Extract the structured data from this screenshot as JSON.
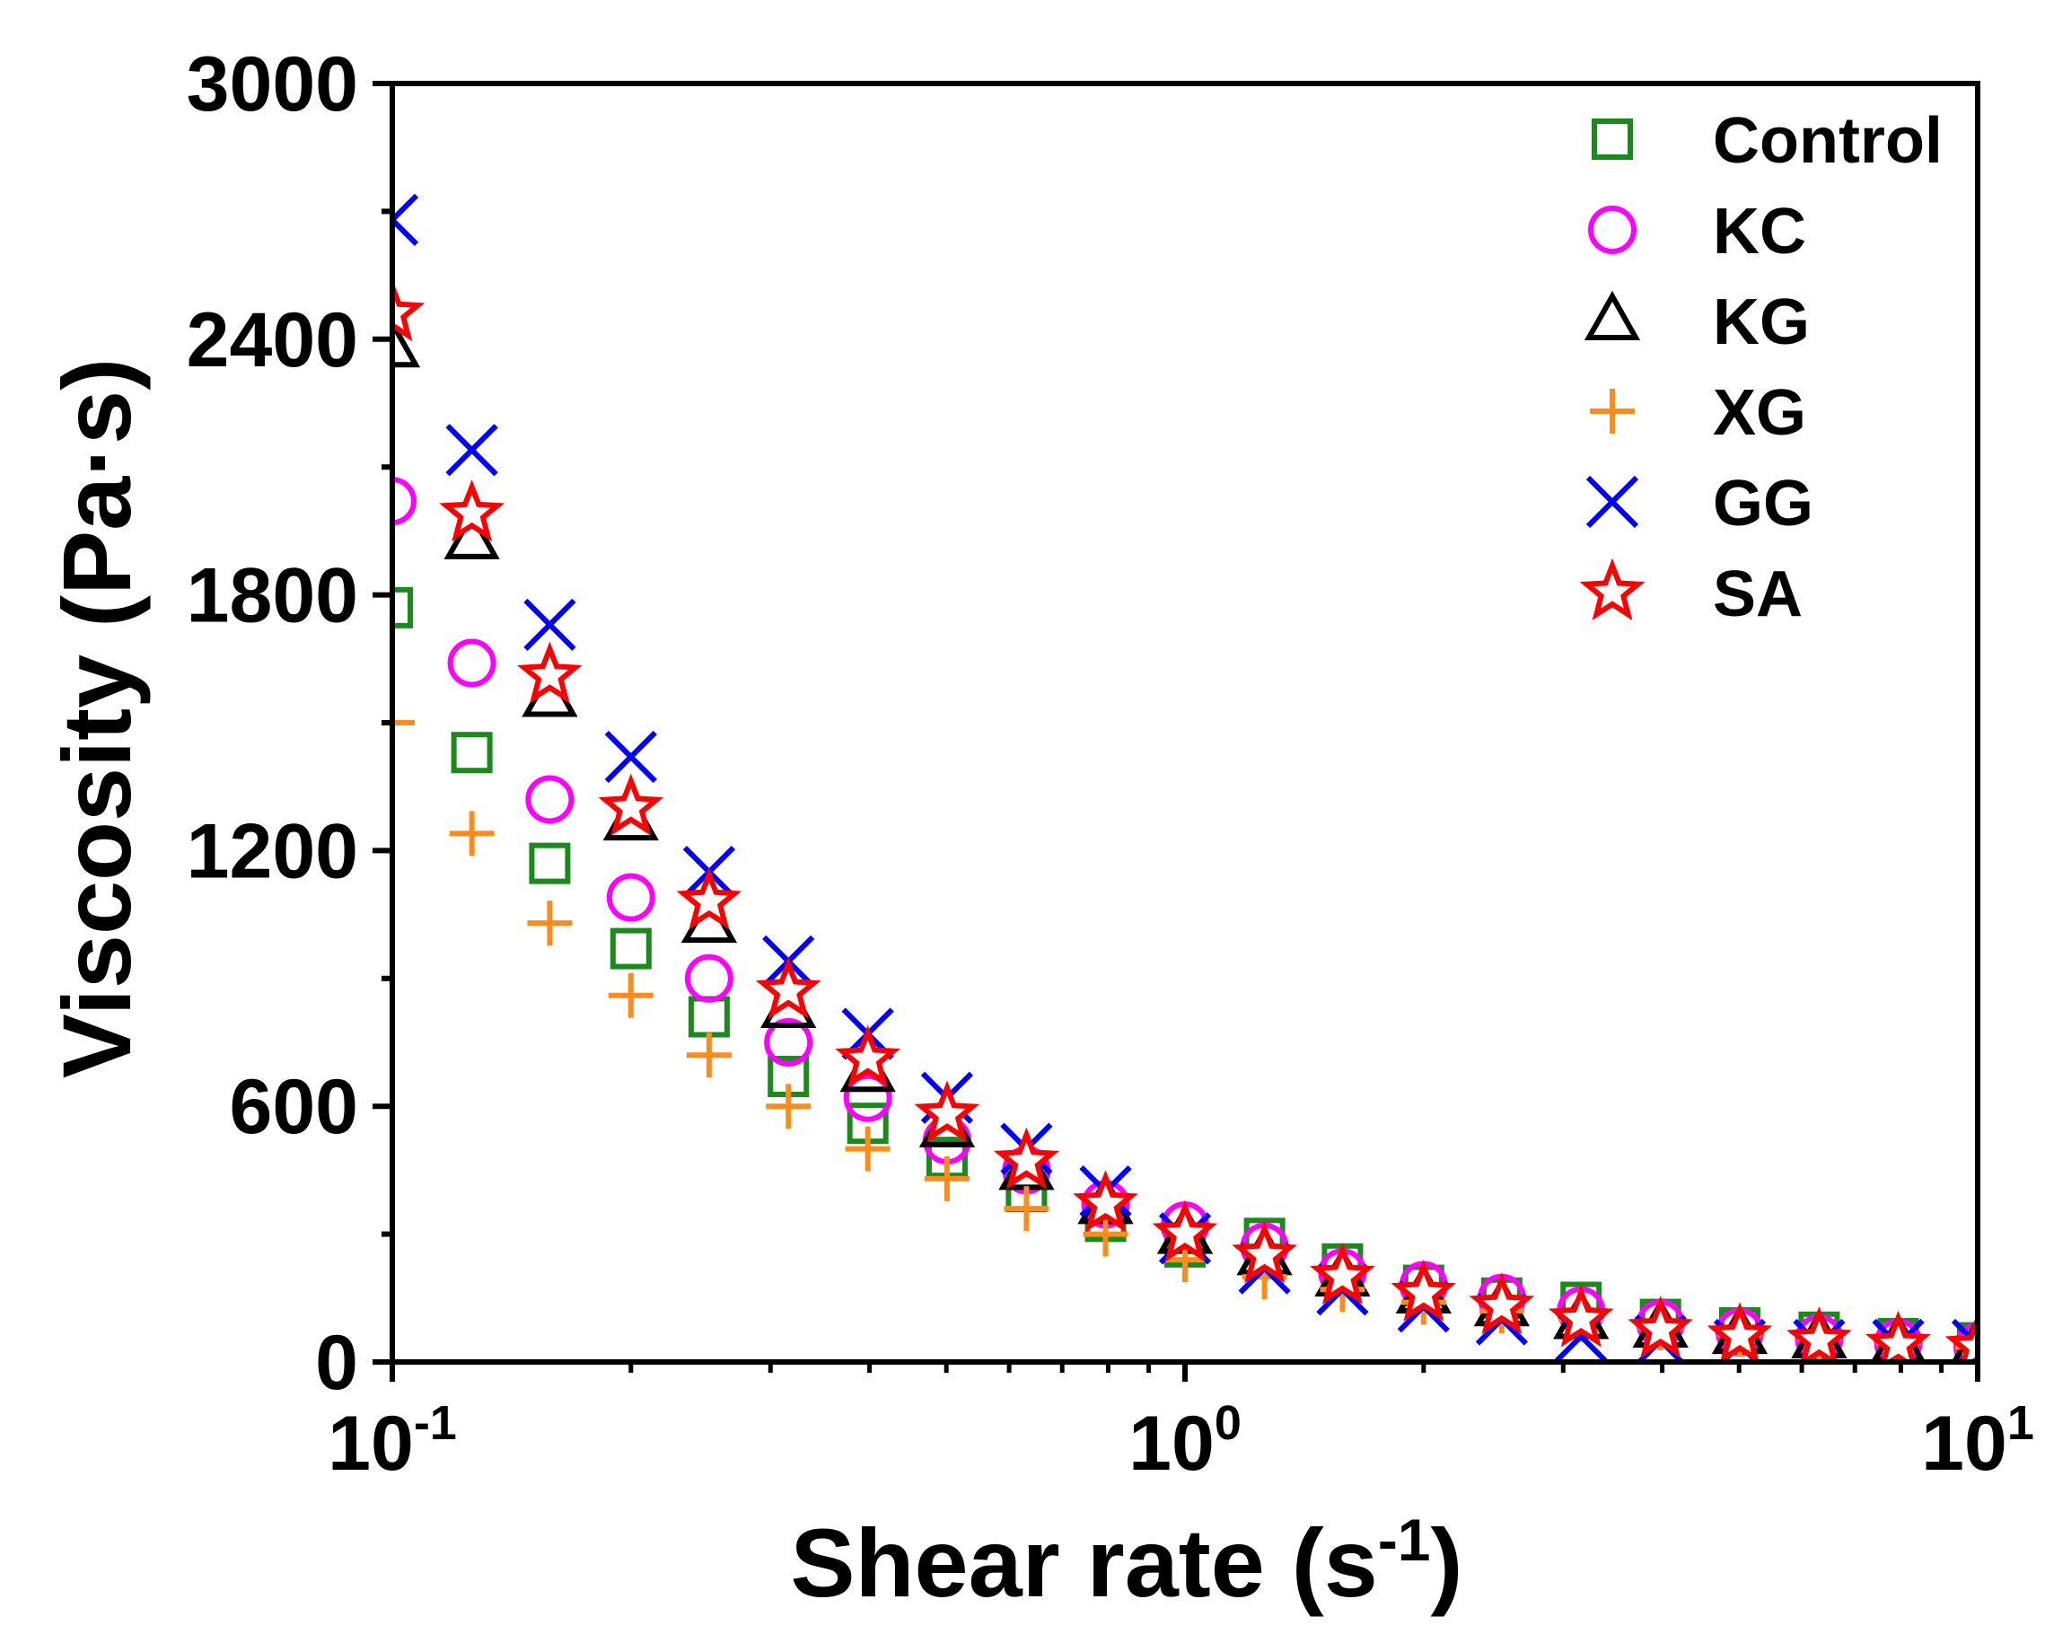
{
  "chart_data": {
    "type": "scatter",
    "x_scale": "log",
    "xlim": [
      0.1,
      10
    ],
    "ylim": [
      0,
      3000
    ],
    "xlabel": {
      "main": "Shear rate (s",
      "exp": "-1",
      "close": ")"
    },
    "ylabel": "Viscosity (Pa·s)",
    "y_ticks": [
      "0",
      "600",
      "1200",
      "1800",
      "2400",
      "3000"
    ],
    "x_ticks": [
      {
        "base": "10",
        "exp": "-1"
      },
      {
        "base": "10",
        "exp": "0"
      },
      {
        "base": "10",
        "exp": "1"
      }
    ],
    "legend_position": "top-right",
    "x": [
      0.1,
      0.126,
      0.158,
      0.2,
      0.251,
      0.316,
      0.398,
      0.501,
      0.631,
      0.794,
      1.0,
      1.26,
      1.58,
      2.0,
      2.51,
      3.16,
      3.98,
      5.01,
      6.31,
      7.94,
      10.0
    ],
    "series": [
      {
        "name": "Control",
        "marker": "square",
        "color": "#1a8a1a",
        "values": [
          1770,
          1430,
          1170,
          970,
          810,
          670,
          560,
          480,
          400,
          330,
          270,
          290,
          230,
          180,
          150,
          140,
          100,
          80,
          70,
          55,
          45
        ]
      },
      {
        "name": "KC",
        "marker": "circle",
        "color": "#ff00ff",
        "values": [
          2020,
          1640,
          1320,
          1090,
          900,
          750,
          620,
          520,
          450,
          370,
          320,
          270,
          210,
          180,
          150,
          120,
          90,
          70,
          55,
          45,
          35
        ]
      },
      {
        "name": "KG",
        "marker": "triangle",
        "color": "#000000",
        "values": [
          2380,
          1930,
          1560,
          1270,
          1030,
          830,
          680,
          550,
          450,
          370,
          300,
          250,
          200,
          160,
          130,
          100,
          80,
          65,
          55,
          45,
          40
        ]
      },
      {
        "name": "XG",
        "marker": "plus",
        "color": "#ff8c1a",
        "values": [
          1500,
          1240,
          1030,
          860,
          720,
          600,
          500,
          430,
          360,
          300,
          240,
          200,
          170,
          140,
          120,
          100,
          80,
          65,
          55,
          45,
          35
        ]
      },
      {
        "name": "GG",
        "marker": "cross",
        "color": "#0000ff",
        "values": [
          2680,
          2140,
          1730,
          1420,
          1150,
          940,
          770,
          620,
          500,
          400,
          290,
          220,
          170,
          130,
          100,
          60,
          50,
          40,
          40,
          40,
          40
        ]
      },
      {
        "name": "SA",
        "marker": "star",
        "color": "#ff0000",
        "values": [
          2460,
          1990,
          1610,
          1300,
          1080,
          870,
          710,
          580,
          470,
          370,
          300,
          250,
          200,
          160,
          130,
          100,
          75,
          60,
          50,
          40,
          35
        ]
      }
    ]
  }
}
